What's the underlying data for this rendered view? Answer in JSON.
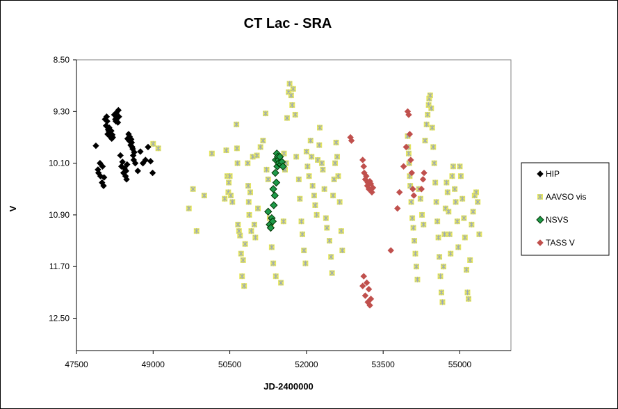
{
  "chart_data": {
    "type": "scatter",
    "title": "CT Lac - SRA",
    "xlabel": "JD-2400000",
    "ylabel": "V",
    "xlim": [
      47500,
      56000
    ],
    "ylim": [
      8.5,
      13.0
    ],
    "y_inverted": true,
    "x_ticks": [
      "47500",
      "49000",
      "50500",
      "52000",
      "53500",
      "55000"
    ],
    "y_ticks": [
      "8.50",
      "9.30",
      "10.10",
      "10.90",
      "11.70",
      "12.50"
    ],
    "grid": false,
    "legend_position": "right",
    "series": [
      {
        "name": "HIP",
        "color": "#000000",
        "marker": "diamond",
        "points": [
          [
            47880,
            9.83
          ],
          [
            47920,
            10.2
          ],
          [
            47930,
            10.25
          ],
          [
            47960,
            10.1
          ],
          [
            47970,
            10.3
          ],
          [
            48000,
            10.4
          ],
          [
            48010,
            10.15
          ],
          [
            48030,
            10.45
          ],
          [
            48040,
            10.32
          ],
          [
            48060,
            9.42
          ],
          [
            48080,
            9.52
          ],
          [
            48090,
            9.38
          ],
          [
            48100,
            9.45
          ],
          [
            48110,
            9.65
          ],
          [
            48120,
            9.58
          ],
          [
            48130,
            9.6
          ],
          [
            48140,
            9.55
          ],
          [
            48150,
            9.68
          ],
          [
            48160,
            9.63
          ],
          [
            48180,
            9.6
          ],
          [
            48190,
            9.72
          ],
          [
            48200,
            9.66
          ],
          [
            48210,
            9.7
          ],
          [
            48240,
            9.35
          ],
          [
            48260,
            9.42
          ],
          [
            48270,
            9.45
          ],
          [
            48280,
            9.32
          ],
          [
            48300,
            9.4
          ],
          [
            48310,
            9.47
          ],
          [
            48320,
            9.28
          ],
          [
            48330,
            9.38
          ],
          [
            48360,
            9.98
          ],
          [
            48380,
            10.15
          ],
          [
            48400,
            10.08
          ],
          [
            48420,
            10.25
          ],
          [
            48440,
            10.18
          ],
          [
            48460,
            10.3
          ],
          [
            48470,
            10.22
          ],
          [
            48480,
            10.35
          ],
          [
            48490,
            10.12
          ],
          [
            48500,
            9.72
          ],
          [
            48520,
            9.65
          ],
          [
            48530,
            9.75
          ],
          [
            48540,
            9.69
          ],
          [
            48560,
            9.82
          ],
          [
            48570,
            9.73
          ],
          [
            48580,
            9.78
          ],
          [
            48590,
            9.85
          ],
          [
            48600,
            9.88
          ],
          [
            48610,
            9.98
          ],
          [
            48620,
            10.05
          ],
          [
            48630,
            9.93
          ],
          [
            48650,
            10.1
          ],
          [
            48700,
            10.22
          ],
          [
            48750,
            9.92
          ],
          [
            48800,
            10.1
          ],
          [
            48850,
            10.05
          ],
          [
            48900,
            9.85
          ],
          [
            48950,
            10.07
          ],
          [
            48990,
            10.25
          ]
        ]
      },
      {
        "name": "AAVSO vis",
        "color": "#e8e85c",
        "marker": "star",
        "points": [
          [
            49000,
            9.8
          ],
          [
            49100,
            9.87
          ],
          [
            49700,
            10.8
          ],
          [
            49780,
            10.5
          ],
          [
            49850,
            11.15
          ],
          [
            50000,
            10.6
          ],
          [
            50150,
            9.95
          ],
          [
            50400,
            10.65
          ],
          [
            50430,
            9.9
          ],
          [
            50450,
            10.3
          ],
          [
            50470,
            10.55
          ],
          [
            50480,
            10.4
          ],
          [
            50500,
            10.3
          ],
          [
            50520,
            10.6
          ],
          [
            50550,
            10.7
          ],
          [
            50630,
            9.5
          ],
          [
            50640,
            9.87
          ],
          [
            50650,
            10.1
          ],
          [
            50660,
            11.05
          ],
          [
            50680,
            11.15
          ],
          [
            50700,
            11.22
          ],
          [
            50720,
            11.5
          ],
          [
            50740,
            11.85
          ],
          [
            50760,
            11.6
          ],
          [
            50780,
            12.0
          ],
          [
            50800,
            11.35
          ],
          [
            50850,
            10.1
          ],
          [
            50860,
            10.45
          ],
          [
            50870,
            10.7
          ],
          [
            50880,
            10.9
          ],
          [
            50900,
            10.55
          ],
          [
            50920,
            11.15
          ],
          [
            50950,
            10.0
          ],
          [
            50980,
            11.05
          ],
          [
            51000,
            11.25
          ],
          [
            51030,
            9.98
          ],
          [
            51050,
            10.8
          ],
          [
            51100,
            9.85
          ],
          [
            51150,
            9.75
          ],
          [
            51200,
            9.33
          ],
          [
            51220,
            10.2
          ],
          [
            51250,
            10.35
          ],
          [
            51280,
            10.95
          ],
          [
            51300,
            11.05
          ],
          [
            51320,
            11.4
          ],
          [
            51350,
            11.65
          ],
          [
            51400,
            11.85
          ],
          [
            51500,
            11.95
          ],
          [
            51550,
            11.0
          ],
          [
            51560,
            9.95
          ],
          [
            51580,
            10.2
          ],
          [
            51600,
            10.1
          ],
          [
            51620,
            9.4
          ],
          [
            51650,
            9.0
          ],
          [
            51670,
            8.87
          ],
          [
            51700,
            9.05
          ],
          [
            51720,
            9.2
          ],
          [
            51740,
            8.95
          ],
          [
            51780,
            9.35
          ],
          [
            51800,
            10.0
          ],
          [
            51850,
            10.35
          ],
          [
            51870,
            10.65
          ],
          [
            51900,
            11.0
          ],
          [
            51920,
            11.2
          ],
          [
            51950,
            11.45
          ],
          [
            51980,
            11.65
          ],
          [
            52000,
            9.92
          ],
          [
            52020,
            10.15
          ],
          [
            52050,
            10.3
          ],
          [
            52080,
            9.75
          ],
          [
            52100,
            10.0
          ],
          [
            52120,
            10.45
          ],
          [
            52150,
            10.6
          ],
          [
            52170,
            10.75
          ],
          [
            52200,
            10.9
          ],
          [
            52220,
            10.05
          ],
          [
            52250,
            9.82
          ],
          [
            52260,
            9.55
          ],
          [
            52300,
            10.1
          ],
          [
            52320,
            10.2
          ],
          [
            52350,
            10.5
          ],
          [
            52380,
            10.95
          ],
          [
            52400,
            11.1
          ],
          [
            52450,
            11.3
          ],
          [
            52480,
            11.55
          ],
          [
            52500,
            11.8
          ],
          [
            52520,
            10.6
          ],
          [
            52540,
            10.35
          ],
          [
            52560,
            10.1
          ],
          [
            52580,
            9.78
          ],
          [
            52600,
            10.0
          ],
          [
            52620,
            10.3
          ],
          [
            52650,
            10.7
          ],
          [
            52680,
            11.15
          ],
          [
            52700,
            11.45
          ],
          [
            53980,
            9.68
          ],
          [
            53990,
            9.85
          ],
          [
            54000,
            9.95
          ],
          [
            54010,
            10.1
          ],
          [
            54020,
            10.3
          ],
          [
            54030,
            10.45
          ],
          [
            54050,
            10.7
          ],
          [
            54070,
            10.95
          ],
          [
            54090,
            11.1
          ],
          [
            54110,
            11.3
          ],
          [
            54130,
            11.5
          ],
          [
            54150,
            11.7
          ],
          [
            54170,
            11.9
          ],
          [
            54200,
            10.5
          ],
          [
            54230,
            10.65
          ],
          [
            54260,
            10.9
          ],
          [
            54290,
            11.05
          ],
          [
            54320,
            9.75
          ],
          [
            54350,
            9.5
          ],
          [
            54370,
            9.35
          ],
          [
            54390,
            9.2
          ],
          [
            54400,
            9.1
          ],
          [
            54420,
            9.05
          ],
          [
            54440,
            9.25
          ],
          [
            54460,
            9.55
          ],
          [
            54480,
            9.85
          ],
          [
            54500,
            10.1
          ],
          [
            54520,
            10.4
          ],
          [
            54540,
            10.7
          ],
          [
            54560,
            11.0
          ],
          [
            54580,
            11.25
          ],
          [
            54600,
            11.55
          ],
          [
            54620,
            11.85
          ],
          [
            54640,
            12.1
          ],
          [
            54660,
            12.25
          ],
          [
            54680,
            11.7
          ],
          [
            54700,
            11.2
          ],
          [
            54720,
            10.8
          ],
          [
            54740,
            10.4
          ],
          [
            54760,
            10.55
          ],
          [
            54780,
            10.85
          ],
          [
            54800,
            11.2
          ],
          [
            54820,
            11.5
          ],
          [
            54850,
            10.3
          ],
          [
            54870,
            10.15
          ],
          [
            54900,
            10.5
          ],
          [
            54920,
            10.7
          ],
          [
            54950,
            11.0
          ],
          [
            54970,
            11.4
          ],
          [
            55000,
            10.15
          ],
          [
            55020,
            10.3
          ],
          [
            55050,
            10.65
          ],
          [
            55080,
            10.95
          ],
          [
            55100,
            11.25
          ],
          [
            55130,
            11.75
          ],
          [
            55150,
            12.1
          ],
          [
            55170,
            12.2
          ],
          [
            55200,
            11.6
          ],
          [
            55230,
            11.05
          ],
          [
            55260,
            10.85
          ],
          [
            55290,
            10.6
          ],
          [
            55320,
            10.55
          ],
          [
            55350,
            10.7
          ],
          [
            55380,
            11.2
          ]
        ]
      },
      {
        "name": "NSVS",
        "color": "#1f9a4a",
        "marker": "diamond",
        "points": [
          [
            51250,
            10.85
          ],
          [
            51280,
            11.05
          ],
          [
            51300,
            11.1
          ],
          [
            51320,
            10.95
          ],
          [
            51340,
            11.0
          ],
          [
            51350,
            10.5
          ],
          [
            51360,
            10.75
          ],
          [
            51380,
            10.6
          ],
          [
            51390,
            10.25
          ],
          [
            51400,
            10.05
          ],
          [
            51410,
            10.4
          ],
          [
            51420,
            9.95
          ],
          [
            51430,
            10.15
          ],
          [
            51440,
            10.0
          ],
          [
            51450,
            10.05
          ],
          [
            51460,
            10.1
          ],
          [
            51480,
            10.0
          ],
          [
            51500,
            10.12
          ],
          [
            51520,
            10.08
          ],
          [
            51540,
            10.15
          ]
        ]
      },
      {
        "name": "TASS V",
        "color": "#c0504d",
        "marker": "diamond",
        "points": [
          [
            52860,
            9.7
          ],
          [
            52880,
            9.75
          ],
          [
            53100,
            10.05
          ],
          [
            53120,
            10.15
          ],
          [
            53130,
            10.25
          ],
          [
            53150,
            10.35
          ],
          [
            53170,
            10.3
          ],
          [
            53190,
            10.45
          ],
          [
            53200,
            10.4
          ],
          [
            53220,
            10.5
          ],
          [
            53240,
            10.38
          ],
          [
            53260,
            10.42
          ],
          [
            53280,
            10.55
          ],
          [
            53300,
            10.48
          ],
          [
            53100,
            12.0
          ],
          [
            53120,
            11.85
          ],
          [
            53150,
            12.15
          ],
          [
            53180,
            11.95
          ],
          [
            53200,
            12.25
          ],
          [
            53220,
            12.05
          ],
          [
            53240,
            12.3
          ],
          [
            53260,
            12.2
          ],
          [
            53650,
            11.45
          ],
          [
            53780,
            10.8
          ],
          [
            53820,
            10.55
          ],
          [
            53900,
            10.15
          ],
          [
            53950,
            9.85
          ],
          [
            53980,
            9.3
          ],
          [
            54000,
            9.35
          ],
          [
            54020,
            9.65
          ],
          [
            54040,
            10.05
          ],
          [
            54060,
            10.25
          ],
          [
            54080,
            10.5
          ],
          [
            54100,
            10.6
          ],
          [
            54250,
            10.5
          ],
          [
            54280,
            10.35
          ],
          [
            54300,
            10.25
          ]
        ]
      }
    ]
  }
}
